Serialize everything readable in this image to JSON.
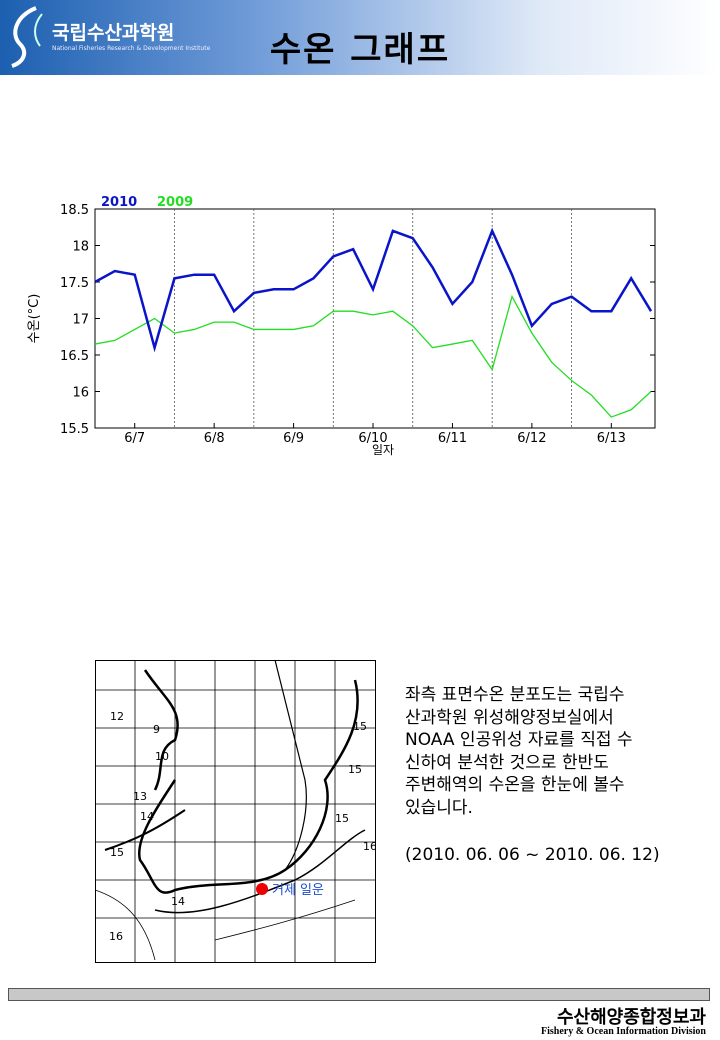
{
  "header": {
    "title": "수온 그래프",
    "logo_name": "국립수산과학원",
    "logo_sub": "National Fisheries Research & Development Institute"
  },
  "chart_data": {
    "type": "line",
    "y_label": "수온(°C)",
    "x_label": "일자",
    "x": [
      7,
      7.25,
      7.5,
      7.75,
      8,
      8.25,
      8.5,
      8.75,
      9,
      9.25,
      9.5,
      9.75,
      10,
      10.25,
      10.5,
      10.75,
      11,
      11.25,
      11.5,
      11.75,
      12,
      12.25,
      12.5,
      12.75,
      13,
      13.25,
      13.5,
      13.75,
      14
    ],
    "series": [
      {
        "name": "2010",
        "color": "#0a14c8",
        "values": [
          17.5,
          17.65,
          17.6,
          16.6,
          17.55,
          17.6,
          17.6,
          17.1,
          17.35,
          17.4,
          17.4,
          17.55,
          17.85,
          17.95,
          17.4,
          18.2,
          18.1,
          17.7,
          17.2,
          17.5,
          18.2,
          17.6,
          16.9,
          17.2,
          17.3,
          17.1,
          17.1,
          17.55,
          17.1
        ]
      },
      {
        "name": "2009",
        "color": "#22dd22",
        "values": [
          16.65,
          16.7,
          16.85,
          17.0,
          16.8,
          16.85,
          16.95,
          16.95,
          16.85,
          16.85,
          16.85,
          16.9,
          17.1,
          17.1,
          17.05,
          17.1,
          16.9,
          16.6,
          16.65,
          16.7,
          16.3,
          17.3,
          16.8,
          16.4,
          16.15,
          15.95,
          15.65,
          15.75,
          16.0
        ]
      }
    ],
    "xlim": [
      7,
      14.05
    ],
    "xticks": [
      {
        "value": 7.5,
        "label": "6/7"
      },
      {
        "value": 8.5,
        "label": "6/8"
      },
      {
        "value": 9.5,
        "label": "6/9"
      },
      {
        "value": 10.5,
        "label": "6/10"
      },
      {
        "value": 11.5,
        "label": "6/11"
      },
      {
        "value": 12.5,
        "label": "6/12"
      },
      {
        "value": 13.5,
        "label": "6/13"
      }
    ],
    "x_minor_ticks": [
      8,
      9,
      10,
      11,
      12,
      13
    ],
    "ylim": [
      15.5,
      18.5
    ],
    "yticks": [
      15.5,
      16,
      16.5,
      17,
      17.5,
      18,
      18.5
    ],
    "grid": "x-dashed"
  },
  "map": {
    "labels": [
      "12",
      "9",
      "10",
      "13",
      "14",
      "15",
      "15",
      "15",
      "15",
      "16",
      "14",
      "16"
    ],
    "station": "거제 일운"
  },
  "description": {
    "lines": [
      "좌측 표면수온 분포도는 국립수",
      "산과학원 위성해양정보실에서",
      "NOAA 인공위성 자료를 직접 수",
      "신하여 분석한 것으로  한반도",
      "주변해역의 수온을 한눈에 볼수",
      "있습니다."
    ],
    "range": "(2010. 06. 06 ~ 2010. 06. 12)"
  },
  "footer": {
    "title": "수산해양종합정보과",
    "subtitle": "Fishery & Ocean Information Division"
  }
}
